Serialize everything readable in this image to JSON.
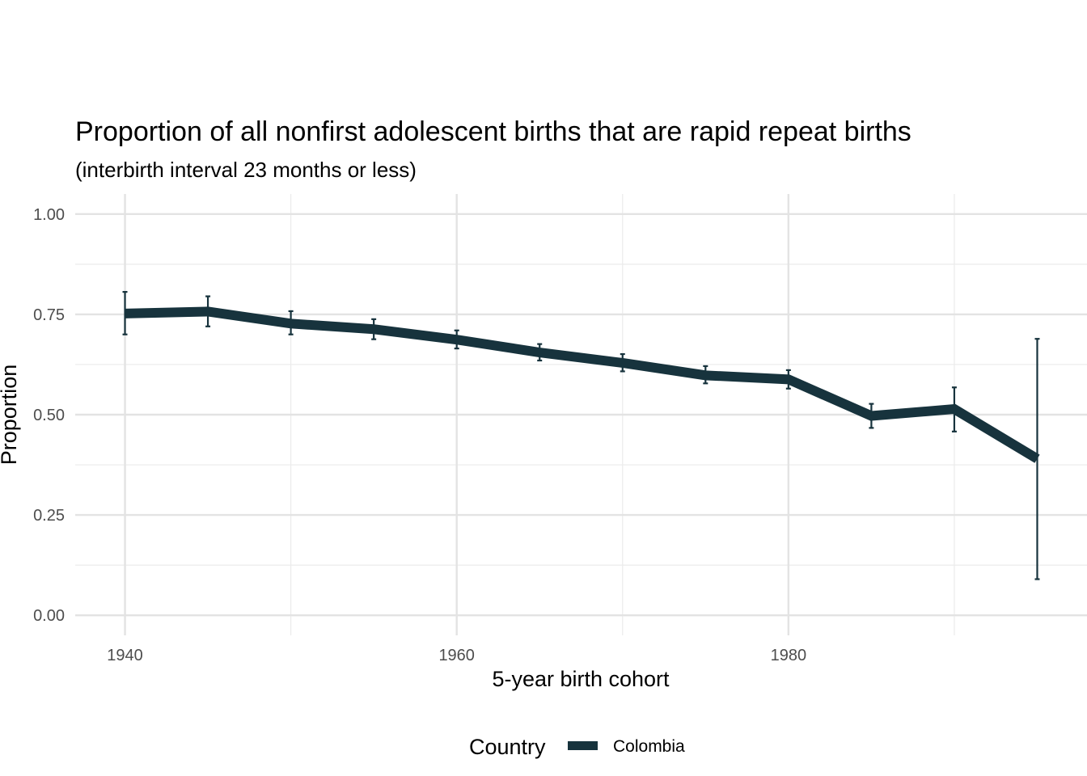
{
  "chart_data": {
    "type": "line",
    "title": "Proportion of all nonfirst adolescent births that are rapid repeat births",
    "subtitle": "(interbirth interval 23 months or less)",
    "xlabel": "5-year birth cohort",
    "ylabel": "Proportion",
    "xlim": [
      1937,
      1998
    ],
    "ylim": [
      -0.05,
      1.05
    ],
    "x_ticks": [
      1940,
      1960,
      1980
    ],
    "y_ticks": [
      0.0,
      0.25,
      0.5,
      0.75,
      1.0
    ],
    "y_tick_labels": [
      "0.00",
      "0.25",
      "0.50",
      "0.75",
      "1.00"
    ],
    "grid": true,
    "legend": {
      "title": "Country",
      "position": "bottom"
    },
    "series": [
      {
        "name": "Colombia",
        "color": "#17333d",
        "x": [
          1940,
          1945,
          1950,
          1955,
          1960,
          1965,
          1970,
          1975,
          1980,
          1985,
          1990,
          1995
        ],
        "values": [
          0.752,
          0.757,
          0.727,
          0.713,
          0.687,
          0.655,
          0.629,
          0.598,
          0.588,
          0.497,
          0.514,
          0.39
        ],
        "lower": [
          0.7,
          0.72,
          0.7,
          0.688,
          0.665,
          0.635,
          0.608,
          0.578,
          0.565,
          0.467,
          0.458,
          0.09
        ],
        "upper": [
          0.806,
          0.795,
          0.758,
          0.738,
          0.71,
          0.676,
          0.651,
          0.621,
          0.611,
          0.527,
          0.568,
          0.689
        ]
      }
    ]
  }
}
